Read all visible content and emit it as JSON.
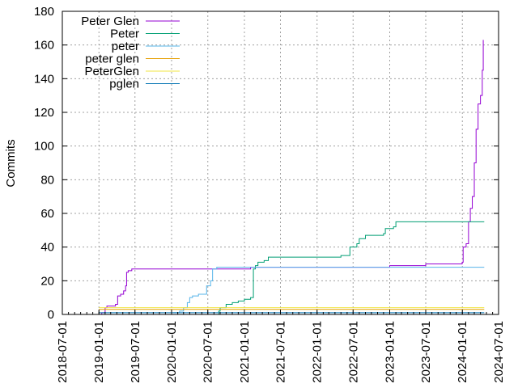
{
  "chart_data": {
    "type": "line",
    "title": "",
    "xlabel": "",
    "ylabel": "Commits",
    "x_type": "date",
    "xlim": [
      "2018-07-01",
      "2024-07-01"
    ],
    "ylim": [
      0,
      180
    ],
    "grid": true,
    "legend_position": "top-left",
    "x_ticks": [
      "2018-07-01",
      "2019-01-01",
      "2019-07-01",
      "2020-01-01",
      "2020-07-01",
      "2021-01-01",
      "2021-07-01",
      "2022-01-01",
      "2022-07-01",
      "2023-01-01",
      "2023-07-01",
      "2024-01-01",
      "2024-07-01"
    ],
    "y_ticks": [
      0,
      20,
      40,
      60,
      80,
      100,
      120,
      140,
      160,
      180
    ],
    "series": [
      {
        "name": "Peter Glen",
        "color": "#9400d3",
        "points": [
          [
            "2018-12-20",
            0
          ],
          [
            "2019-01-15",
            1
          ],
          [
            "2019-02-01",
            4
          ],
          [
            "2019-02-10",
            5
          ],
          [
            "2019-03-15",
            5
          ],
          [
            "2019-03-25",
            6
          ],
          [
            "2019-04-05",
            11
          ],
          [
            "2019-04-20",
            12
          ],
          [
            "2019-05-05",
            14
          ],
          [
            "2019-05-15",
            17
          ],
          [
            "2019-05-20",
            25
          ],
          [
            "2019-05-28",
            26
          ],
          [
            "2019-06-15",
            27
          ],
          [
            "2020-07-01",
            27
          ],
          [
            "2020-08-01",
            27
          ],
          [
            "2021-02-01",
            28
          ],
          [
            "2022-06-01",
            28
          ],
          [
            "2022-09-01",
            28
          ],
          [
            "2023-01-01",
            29
          ],
          [
            "2023-04-01",
            29
          ],
          [
            "2023-07-01",
            30
          ],
          [
            "2023-12-01",
            30
          ],
          [
            "2023-12-31",
            31
          ],
          [
            "2024-01-05",
            40
          ],
          [
            "2024-01-20",
            42
          ],
          [
            "2024-02-01",
            55
          ],
          [
            "2024-02-10",
            63
          ],
          [
            "2024-02-20",
            70
          ],
          [
            "2024-03-01",
            90
          ],
          [
            "2024-03-10",
            110
          ],
          [
            "2024-03-20",
            125
          ],
          [
            "2024-04-01",
            130
          ],
          [
            "2024-04-10",
            145
          ],
          [
            "2024-04-15",
            163
          ]
        ]
      },
      {
        "name": "Peter",
        "color": "#009e73",
        "points": [
          [
            "2020-08-20",
            0
          ],
          [
            "2020-08-25",
            2
          ],
          [
            "2020-09-01",
            4
          ],
          [
            "2020-10-01",
            6
          ],
          [
            "2020-11-01",
            7
          ],
          [
            "2020-12-01",
            8
          ],
          [
            "2021-01-01",
            9
          ],
          [
            "2021-02-01",
            10
          ],
          [
            "2021-02-15",
            27
          ],
          [
            "2021-02-25",
            29
          ],
          [
            "2021-03-10",
            31
          ],
          [
            "2021-04-10",
            32
          ],
          [
            "2021-05-01",
            34
          ],
          [
            "2021-08-01",
            34
          ],
          [
            "2022-01-01",
            34
          ],
          [
            "2022-05-01",
            35
          ],
          [
            "2022-06-10",
            35
          ],
          [
            "2022-06-15",
            40
          ],
          [
            "2022-07-20",
            42
          ],
          [
            "2022-08-01",
            45
          ],
          [
            "2022-09-01",
            47
          ],
          [
            "2022-12-01",
            48
          ],
          [
            "2022-12-10",
            51
          ],
          [
            "2023-01-20",
            52
          ],
          [
            "2023-02-01",
            55
          ],
          [
            "2024-04-20",
            55
          ]
        ]
      },
      {
        "name": "peter",
        "color": "#56b4e9",
        "points": [
          [
            "2020-01-10",
            1
          ],
          [
            "2020-02-10",
            2
          ],
          [
            "2020-03-01",
            4
          ],
          [
            "2020-03-20",
            7
          ],
          [
            "2020-04-01",
            10
          ],
          [
            "2020-04-15",
            11
          ],
          [
            "2020-05-15",
            12
          ],
          [
            "2020-06-15",
            12
          ],
          [
            "2020-06-25",
            17
          ],
          [
            "2020-07-15",
            20
          ],
          [
            "2020-07-25",
            27
          ],
          [
            "2020-08-15",
            28
          ],
          [
            "2024-04-20",
            28
          ]
        ]
      },
      {
        "name": "peter glen",
        "color": "#e69f00",
        "points": [
          [
            "2019-01-01",
            3
          ],
          [
            "2024-04-20",
            3
          ]
        ]
      },
      {
        "name": "PeterGlen",
        "color": "#f0e442",
        "points": [
          [
            "2019-01-01",
            4
          ],
          [
            "2024-04-20",
            4
          ]
        ]
      },
      {
        "name": "pglen",
        "color": "#0072b2",
        "points": [
          [
            "2019-01-01",
            1
          ],
          [
            "2024-04-20",
            1
          ]
        ]
      }
    ]
  }
}
